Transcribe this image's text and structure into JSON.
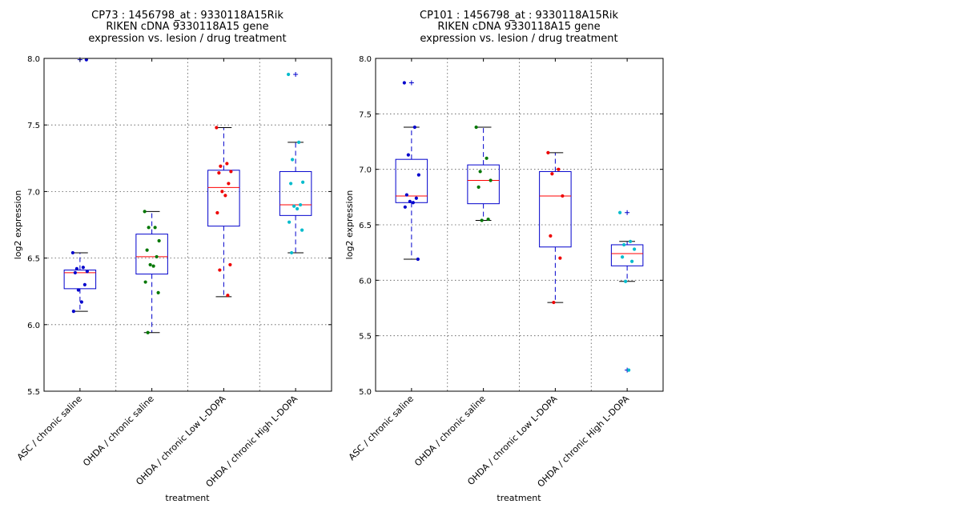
{
  "chart_data": [
    {
      "type": "box",
      "title_lines": [
        "CP73 : 1456798_at : 9330118A15Rik",
        "RIKEN cDNA 9330118A15 gene",
        "expression vs. lesion / drug treatment"
      ],
      "xlabel": "treatment",
      "ylabel": "log2 expression",
      "ylim": [
        5.5,
        8.0
      ],
      "yticks": [
        5.5,
        6.0,
        6.5,
        7.0,
        7.5,
        8.0
      ],
      "ytick_labels": [
        "5.5",
        "6.0",
        "6.5",
        "7.0",
        "7.5",
        "8.0"
      ],
      "grid": true,
      "categories": [
        "ASC / chronic saline",
        "OHDA / chronic saline",
        "OHDA / chronic Low L-DOPA",
        "OHDA / chronic High L-DOPA"
      ],
      "colors": [
        "#0000cc",
        "#007700",
        "#ee0000",
        "#00bbcc"
      ],
      "box_color": "#0000cc",
      "median_color": "#ff0000",
      "boxes": [
        {
          "q1": 6.27,
          "median": 6.39,
          "q3": 6.41,
          "whisker_low": 6.1,
          "whisker_high": 6.54,
          "outliers": [
            7.99
          ]
        },
        {
          "q1": 6.38,
          "median": 6.51,
          "q3": 6.68,
          "whisker_low": 5.94,
          "whisker_high": 6.85,
          "outliers": []
        },
        {
          "q1": 6.74,
          "median": 7.03,
          "q3": 7.16,
          "whisker_low": 6.21,
          "whisker_high": 7.48,
          "outliers": []
        },
        {
          "q1": 6.82,
          "median": 6.9,
          "q3": 7.15,
          "whisker_low": 6.54,
          "whisker_high": 7.37,
          "outliers": [
            7.88
          ]
        }
      ],
      "points": [
        [
          6.54,
          6.43,
          6.42,
          6.4,
          6.39,
          6.3,
          6.26,
          6.17,
          6.1,
          7.99
        ],
        [
          6.85,
          6.73,
          6.73,
          6.63,
          6.56,
          6.51,
          6.45,
          6.44,
          6.32,
          6.24,
          5.94
        ],
        [
          7.48,
          7.21,
          7.19,
          7.15,
          7.14,
          7.06,
          7.0,
          6.97,
          6.84,
          6.45,
          6.41,
          6.22
        ],
        [
          7.88,
          7.37,
          7.24,
          7.07,
          7.06,
          6.9,
          6.89,
          6.87,
          6.77,
          6.71,
          6.54
        ]
      ]
    },
    {
      "type": "box",
      "title_lines": [
        "CP101 : 1456798_at : 9330118A15Rik",
        "RIKEN cDNA 9330118A15 gene",
        "expression vs. lesion / drug treatment"
      ],
      "xlabel": "treatment",
      "ylabel": "log2 expression",
      "ylim": [
        5.0,
        8.0
      ],
      "yticks": [
        5.0,
        5.5,
        6.0,
        6.5,
        7.0,
        7.5,
        8.0
      ],
      "ytick_labels": [
        "5.0",
        "5.5",
        "6.0",
        "6.5",
        "7.0",
        "7.5",
        "8.0"
      ],
      "grid": true,
      "categories": [
        "ASC / chronic saline",
        "OHDA / chronic saline",
        "OHDA / chronic Low L-DOPA",
        "OHDA / chronic High L-DOPA"
      ],
      "colors": [
        "#0000cc",
        "#007700",
        "#ee0000",
        "#00bbcc"
      ],
      "box_color": "#0000cc",
      "median_color": "#ff0000",
      "boxes": [
        {
          "q1": 6.7,
          "median": 6.76,
          "q3": 7.09,
          "whisker_low": 6.19,
          "whisker_high": 7.38,
          "outliers": [
            7.78
          ]
        },
        {
          "q1": 6.69,
          "median": 6.9,
          "q3": 7.04,
          "whisker_low": 6.54,
          "whisker_high": 7.38,
          "outliers": []
        },
        {
          "q1": 6.3,
          "median": 6.76,
          "q3": 6.98,
          "whisker_low": 5.8,
          "whisker_high": 7.15,
          "outliers": []
        },
        {
          "q1": 6.13,
          "median": 6.24,
          "q3": 6.32,
          "whisker_low": 5.99,
          "whisker_high": 6.35,
          "outliers": [
            6.61,
            5.19
          ]
        }
      ],
      "points": [
        [
          7.78,
          7.38,
          7.13,
          6.95,
          6.77,
          6.74,
          6.71,
          6.7,
          6.66,
          6.19
        ],
        [
          7.38,
          7.1,
          6.98,
          6.9,
          6.84,
          6.55,
          6.54
        ],
        [
          7.15,
          7.0,
          6.96,
          6.76,
          6.4,
          6.2,
          5.8
        ],
        [
          6.61,
          6.35,
          6.32,
          6.28,
          6.21,
          6.17,
          5.99,
          5.19
        ]
      ]
    }
  ]
}
